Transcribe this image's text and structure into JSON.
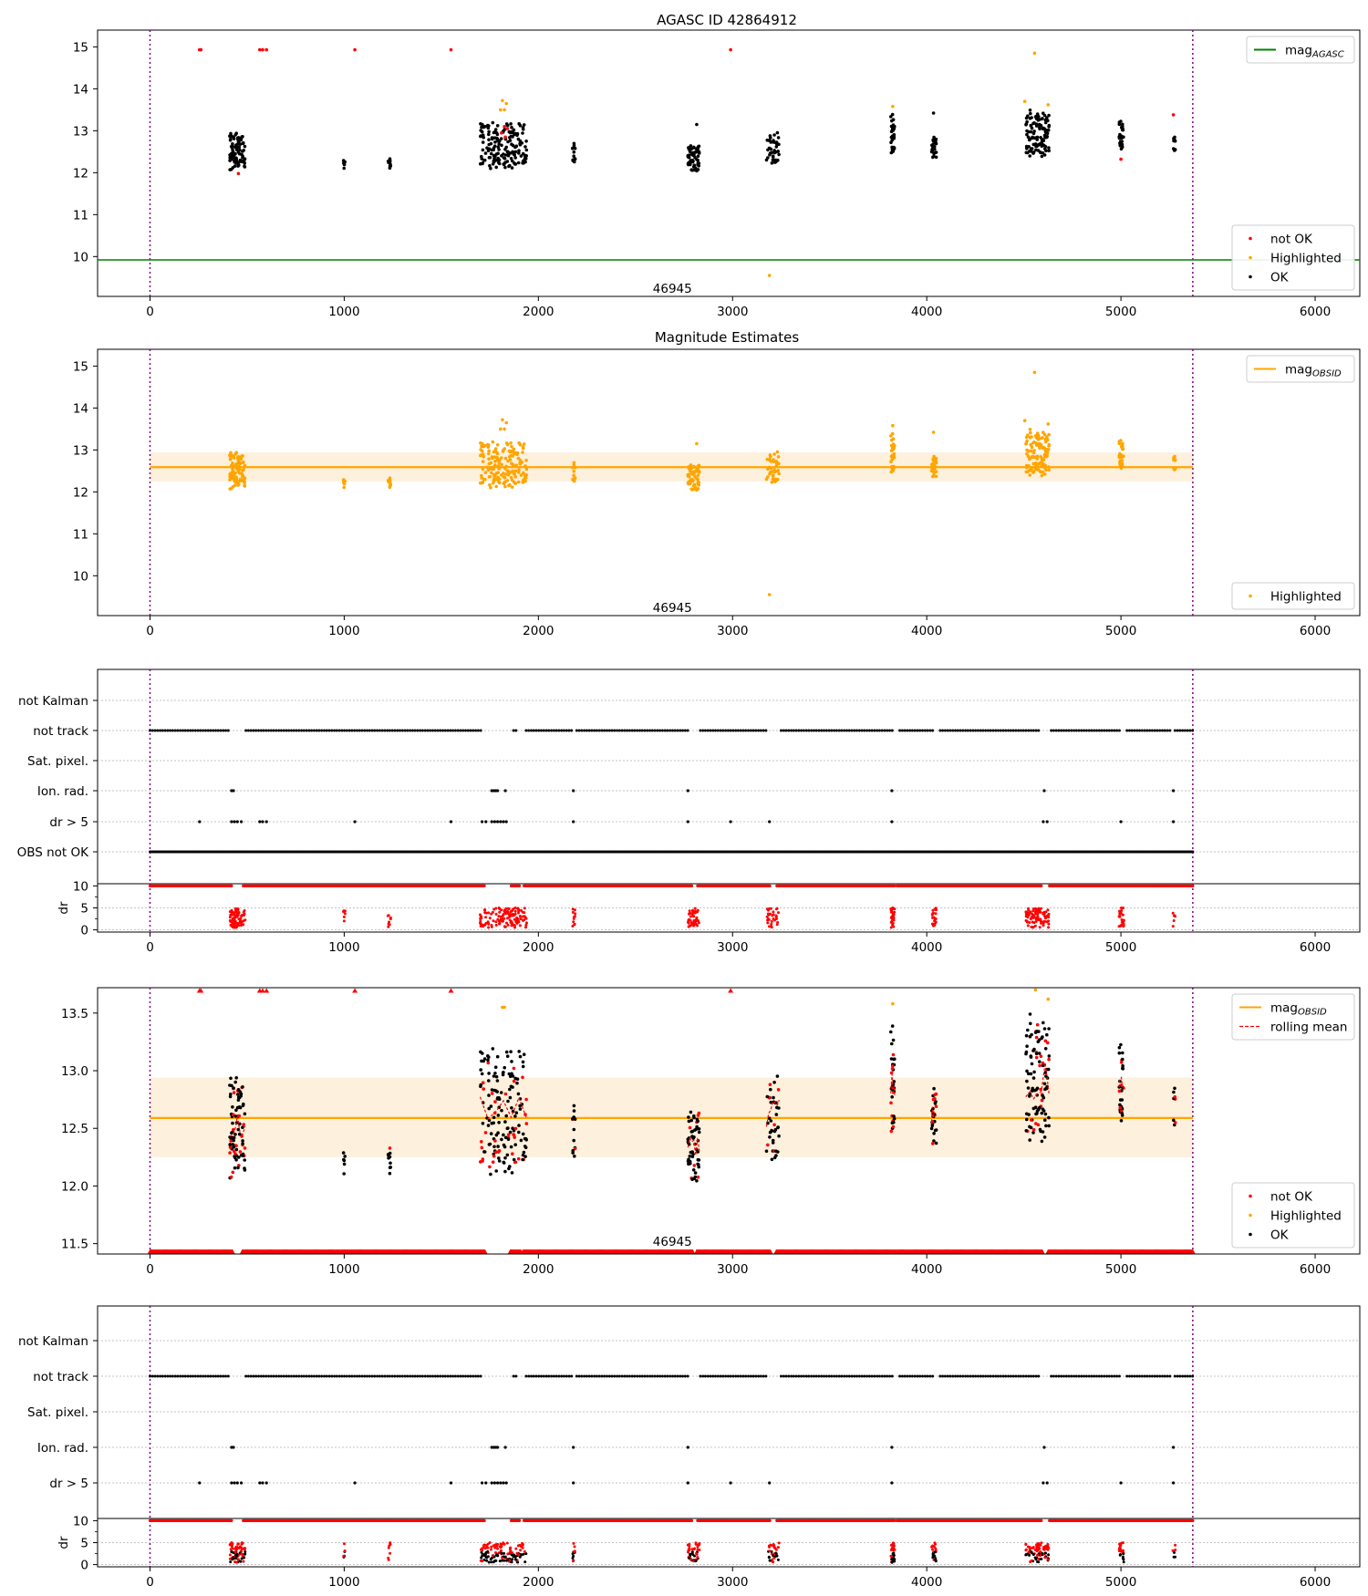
{
  "page": {
    "title": "AGASC ID 42864912",
    "subtitle": "Magnitude Estimates"
  },
  "colors": {
    "not_ok": "#ff0000",
    "highlighted": "#ffa500",
    "ok": "#000000",
    "mag_agasc": "#008000",
    "mag_obsid": "#ffa500",
    "band": "#fdf0dc",
    "boundary": "#800080",
    "rolling_mean": "#ff0000",
    "grid": "#b0b0b0"
  },
  "chart_data": [
    {
      "id": "agasc_panel",
      "type": "scatter",
      "title": "AGASC ID 42864912",
      "xlim": [
        -270,
        6230
      ],
      "ylim": [
        9.05,
        15.4
      ],
      "xticks": [
        0,
        1000,
        2000,
        3000,
        4000,
        5000,
        6000
      ],
      "yticks": [
        10,
        11,
        12,
        13,
        14,
        15
      ],
      "vlines": [
        0,
        5370
      ],
      "hline": {
        "name": "mag_AGASC",
        "value": 9.92
      },
      "annotation": {
        "text": "46945",
        "x": 2690,
        "y": 9.25
      },
      "legends": [
        {
          "position": "top-right",
          "entries": [
            {
              "kind": "line",
              "label": "mag",
              "sub": "AGASC",
              "color": "mag_agasc"
            }
          ]
        },
        {
          "position": "lower-right",
          "entries": [
            {
              "kind": "dot",
              "label": "not OK",
              "color": "not_ok"
            },
            {
              "kind": "dot",
              "label": "Highlighted",
              "color": "highlighted"
            },
            {
              "kind": "dot",
              "label": "OK",
              "color": "ok"
            }
          ]
        }
      ],
      "clusters": [
        {
          "x0": 410,
          "x1": 490,
          "ymin": 12.05,
          "ymax": 12.95,
          "n": 90
        },
        {
          "x0": 995,
          "x1": 1005,
          "ymin": 12.05,
          "ymax": 12.3,
          "n": 6
        },
        {
          "x0": 1225,
          "x1": 1240,
          "ymin": 12.05,
          "ymax": 12.5,
          "n": 10
        },
        {
          "x0": 1700,
          "x1": 1940,
          "ymin": 12.1,
          "ymax": 13.2,
          "n": 170
        },
        {
          "x0": 2175,
          "x1": 2190,
          "ymin": 12.25,
          "ymax": 12.8,
          "n": 14
        },
        {
          "x0": 2770,
          "x1": 2830,
          "ymin": 11.95,
          "ymax": 12.7,
          "n": 55
        },
        {
          "x0": 3175,
          "x1": 3240,
          "ymin": 12.15,
          "ymax": 13.1,
          "n": 40
        },
        {
          "x0": 3815,
          "x1": 3835,
          "ymin": 12.4,
          "ymax": 13.4,
          "n": 35
        },
        {
          "x0": 4025,
          "x1": 4050,
          "ymin": 12.35,
          "ymax": 12.9,
          "n": 28
        },
        {
          "x0": 4510,
          "x1": 4630,
          "ymin": 12.35,
          "ymax": 13.5,
          "n": 110
        },
        {
          "x0": 4990,
          "x1": 5015,
          "ymin": 12.55,
          "ymax": 13.3,
          "n": 30
        },
        {
          "x0": 5265,
          "x1": 5280,
          "ymin": 12.5,
          "ymax": 12.9,
          "n": 8
        }
      ],
      "points_not_ok": [
        [
          255,
          14.93
        ],
        [
          262,
          14.93
        ],
        [
          565,
          14.93
        ],
        [
          580,
          14.93
        ],
        [
          600,
          14.93
        ],
        [
          1055,
          14.93
        ],
        [
          1550,
          14.93
        ],
        [
          2990,
          14.93
        ],
        [
          455,
          11.98
        ],
        [
          1810,
          12.95
        ],
        [
          1825,
          13.1
        ],
        [
          1840,
          13.05
        ],
        [
          1830,
          12.85
        ],
        [
          5000,
          12.32
        ],
        [
          5270,
          13.38
        ]
      ],
      "points_highlighted": [
        [
          4555,
          14.85
        ],
        [
          4505,
          13.7
        ],
        [
          1815,
          13.72
        ],
        [
          1835,
          13.65
        ],
        [
          1805,
          13.5
        ],
        [
          1825,
          13.5
        ],
        [
          3825,
          13.58
        ],
        [
          4625,
          13.62
        ],
        [
          3190,
          9.55
        ]
      ],
      "points_ok_extra": [
        [
          2815,
          13.15
        ],
        [
          4035,
          13.42
        ]
      ]
    },
    {
      "id": "obsid_panel",
      "type": "scatter",
      "title": "Magnitude Estimates",
      "xlim": [
        -270,
        6230
      ],
      "ylim": [
        9.05,
        15.4
      ],
      "xticks": [
        0,
        1000,
        2000,
        3000,
        4000,
        5000,
        6000
      ],
      "yticks": [
        10,
        11,
        12,
        13,
        14,
        15
      ],
      "vlines": [
        0,
        5370
      ],
      "mag_obsid": 12.59,
      "band": [
        12.25,
        12.94
      ],
      "annotation": {
        "text": "46945",
        "x": 2690,
        "y": 9.25
      },
      "legends": [
        {
          "position": "top-right",
          "entries": [
            {
              "kind": "line",
              "label": "mag",
              "sub": "OBSID",
              "color": "mag_obsid"
            }
          ]
        },
        {
          "position": "lower-right",
          "entries": [
            {
              "kind": "dot",
              "label": "Highlighted",
              "color": "highlighted"
            }
          ]
        }
      ]
    },
    {
      "id": "flags_panel_1",
      "type": "scatter",
      "xlim": [
        -270,
        6230
      ],
      "xticks": [
        0,
        1000,
        2000,
        3000,
        4000,
        5000,
        6000
      ],
      "vlines": [
        0,
        5370
      ],
      "rows": [
        "not Kalman",
        "not track",
        "Sat. pixel.",
        "Ion. rad.",
        "dr > 5",
        "OBS not OK"
      ],
      "not_track_gaps": [
        [
          410,
          490
        ],
        [
          1710,
          1870
        ],
        [
          1895,
          1935
        ],
        [
          2180,
          2190
        ],
        [
          2780,
          2830
        ],
        [
          3180,
          3240
        ],
        [
          3825,
          3855
        ],
        [
          4040,
          4060
        ],
        [
          4580,
          4640
        ],
        [
          5000,
          5020
        ],
        [
          5260,
          5275
        ]
      ],
      "ion_rad_x": [
        420,
        430,
        1760,
        1770,
        1780,
        1790,
        1830,
        2180,
        2770,
        3820,
        4605,
        5270
      ],
      "dr5_x": [
        255,
        420,
        435,
        450,
        470,
        565,
        580,
        600,
        1055,
        1550,
        1710,
        1730,
        1760,
        1775,
        1790,
        1805,
        1820,
        1835,
        2180,
        2770,
        2990,
        3190,
        3820,
        4600,
        4620,
        5000,
        5270
      ],
      "dr_subplot": {
        "ylabel": "dr",
        "yticks": [
          0,
          5,
          10
        ],
        "ylim": [
          -0.5,
          10.5
        ]
      }
    },
    {
      "id": "rolling_panel",
      "type": "scatter",
      "xlim": [
        -270,
        6230
      ],
      "ylim": [
        11.41,
        13.72
      ],
      "xticks": [
        0,
        1000,
        2000,
        3000,
        4000,
        5000,
        6000
      ],
      "yticks": [
        11.5,
        12.0,
        12.5,
        13.0,
        13.5
      ],
      "vlines": [
        0,
        5370
      ],
      "mag_obsid": 12.59,
      "band": [
        12.25,
        12.94
      ],
      "annotation": {
        "text": "46945",
        "x": 2690,
        "y": 11.45
      },
      "legends": [
        {
          "position": "top-right",
          "entries": [
            {
              "kind": "line",
              "label": "mag",
              "sub": "OBSID",
              "color": "mag_obsid"
            },
            {
              "kind": "dashed",
              "label": "rolling mean",
              "color": "rolling_mean"
            }
          ]
        },
        {
          "position": "lower-right",
          "entries": [
            {
              "kind": "dot",
              "label": "not OK",
              "color": "not_ok"
            },
            {
              "kind": "dot",
              "label": "Highlighted",
              "color": "highlighted"
            },
            {
              "kind": "dot",
              "label": "OK",
              "color": "ok"
            }
          ]
        }
      ]
    },
    {
      "id": "flags_panel_2",
      "type": "scatter",
      "xlim": [
        -270,
        6230
      ],
      "xticks": [
        0,
        1000,
        2000,
        3000,
        4000,
        5000,
        6000
      ],
      "vlines": [
        0,
        5370
      ],
      "rows": [
        "not Kalman",
        "not track",
        "Sat. pixel.",
        "Ion. rad.",
        "dr > 5"
      ],
      "dr_subplot": {
        "ylabel": "dr",
        "yticks": [
          0,
          5,
          10
        ],
        "ylim": [
          -0.5,
          10.5
        ]
      }
    }
  ]
}
